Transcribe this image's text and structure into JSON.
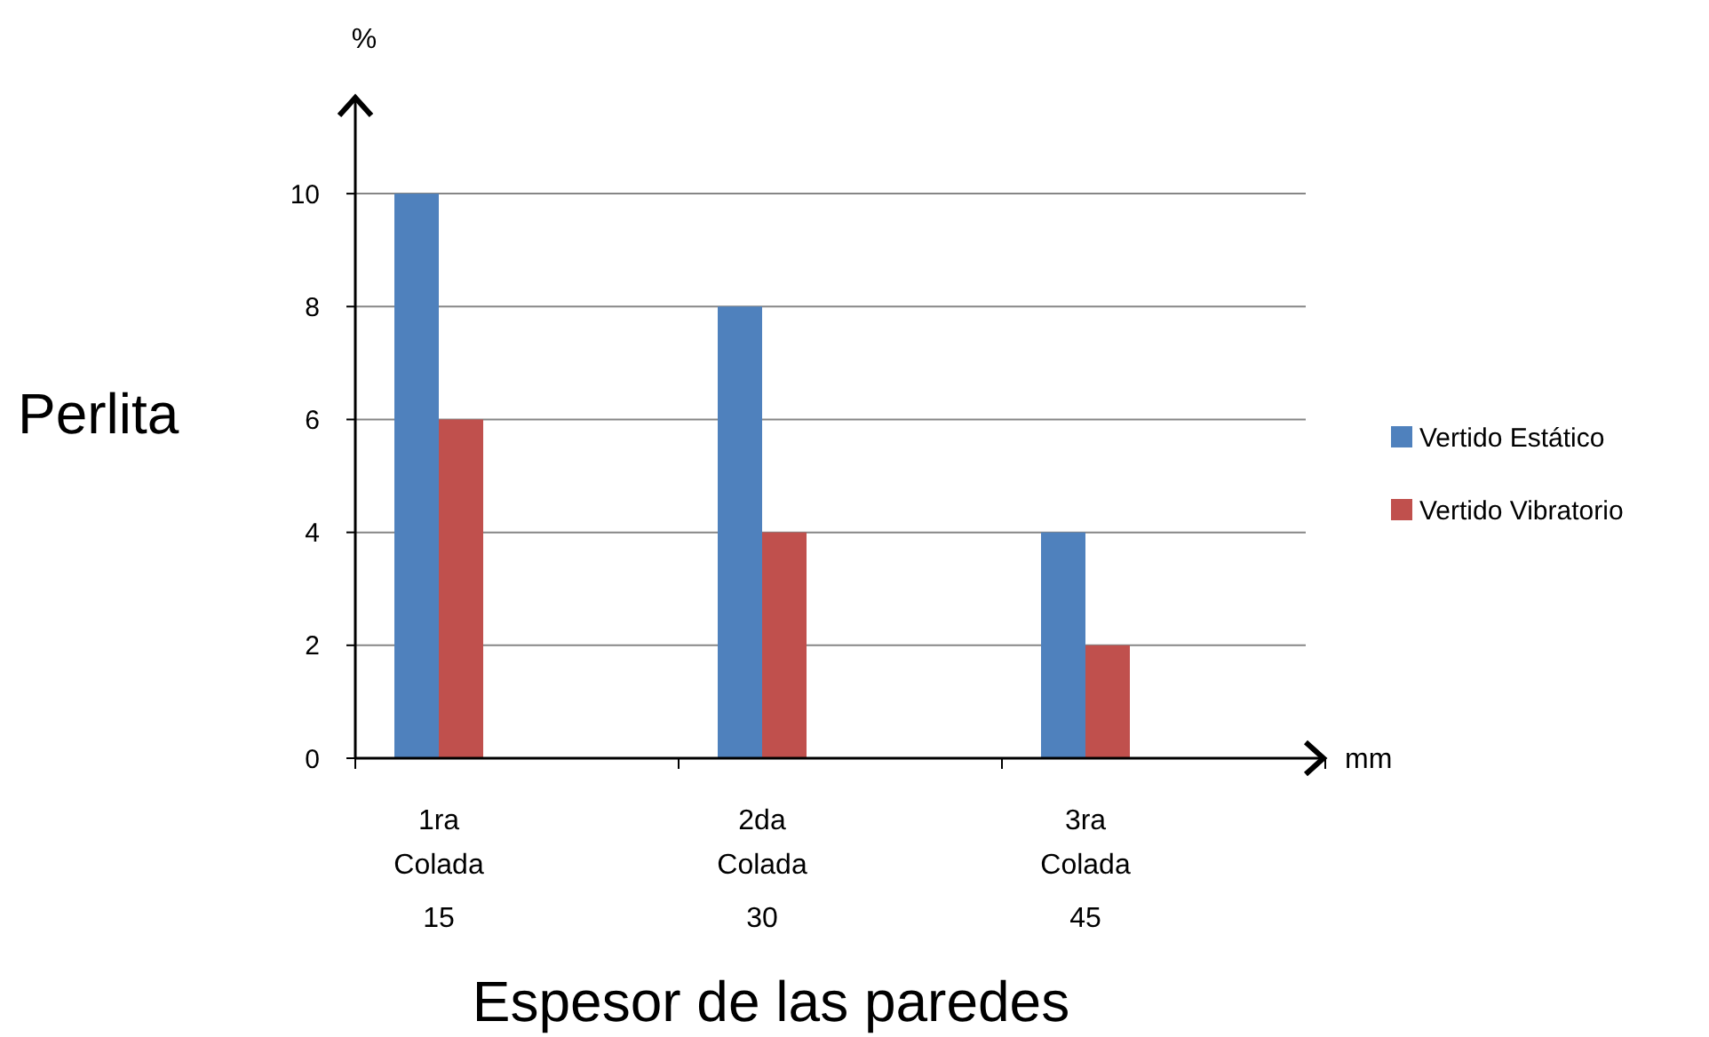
{
  "chart_data": {
    "type": "bar",
    "ylabel": "Perlita",
    "xlabel": "Espesor de las paredes",
    "categories": [
      "1ra\nColada\n15",
      "2da\nColada\n30",
      "3ra\nColada\n45"
    ],
    "series": [
      {
        "name": "Vertido Estático",
        "color": "#4f81bd",
        "values": [
          10,
          8,
          4
        ]
      },
      {
        "name": "Vertido Vibratorio",
        "color": "#c0504d",
        "values": [
          6,
          4,
          2
        ]
      }
    ],
    "ylim": [
      0,
      11.7
    ],
    "yticks": [
      0,
      2,
      4,
      6,
      8,
      10
    ],
    "grid": "y",
    "legend": "right",
    "annotations": [
      "%",
      "mm"
    ]
  }
}
